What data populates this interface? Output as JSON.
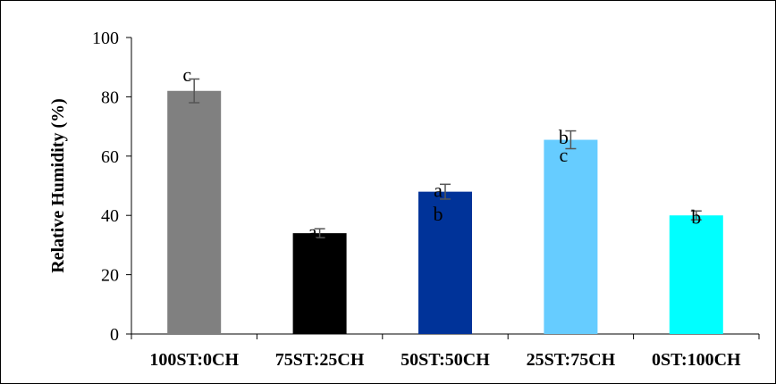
{
  "chart_data": {
    "type": "bar",
    "title": "",
    "xlabel": "",
    "ylabel": "Relative Humidity (%)",
    "ylim": [
      0,
      100
    ],
    "yticks": [
      "0",
      "20",
      "40",
      "60",
      "80",
      "100"
    ],
    "grid": false,
    "categories": [
      "100ST:0CH",
      "75ST:25CH",
      "50ST:50CH",
      "25ST:75CH",
      "0ST:100CH"
    ],
    "values": [
      82,
      34,
      48,
      65.5,
      40
    ],
    "errors": [
      4,
      1.5,
      2.5,
      3,
      1.5
    ],
    "colors": [
      "#808080",
      "#000000",
      "#003399",
      "#66CCFF",
      "#00FFFF"
    ],
    "significance_labels": [
      {
        "category": "100ST:0CH",
        "label": "c",
        "y": 87
      },
      {
        "category": "75ST:25CH",
        "label": "a",
        "y": 34
      },
      {
        "category": "50ST:50CH",
        "label": "a",
        "y": 48
      },
      {
        "category": "50ST:50CH",
        "label": "b",
        "y": 40
      },
      {
        "category": "25ST:75CH",
        "label": "b",
        "y": 66
      },
      {
        "category": "25ST:75CH",
        "label": "c",
        "y": 60
      },
      {
        "category": "0ST:100CH",
        "label": "b",
        "y": 39
      }
    ]
  }
}
